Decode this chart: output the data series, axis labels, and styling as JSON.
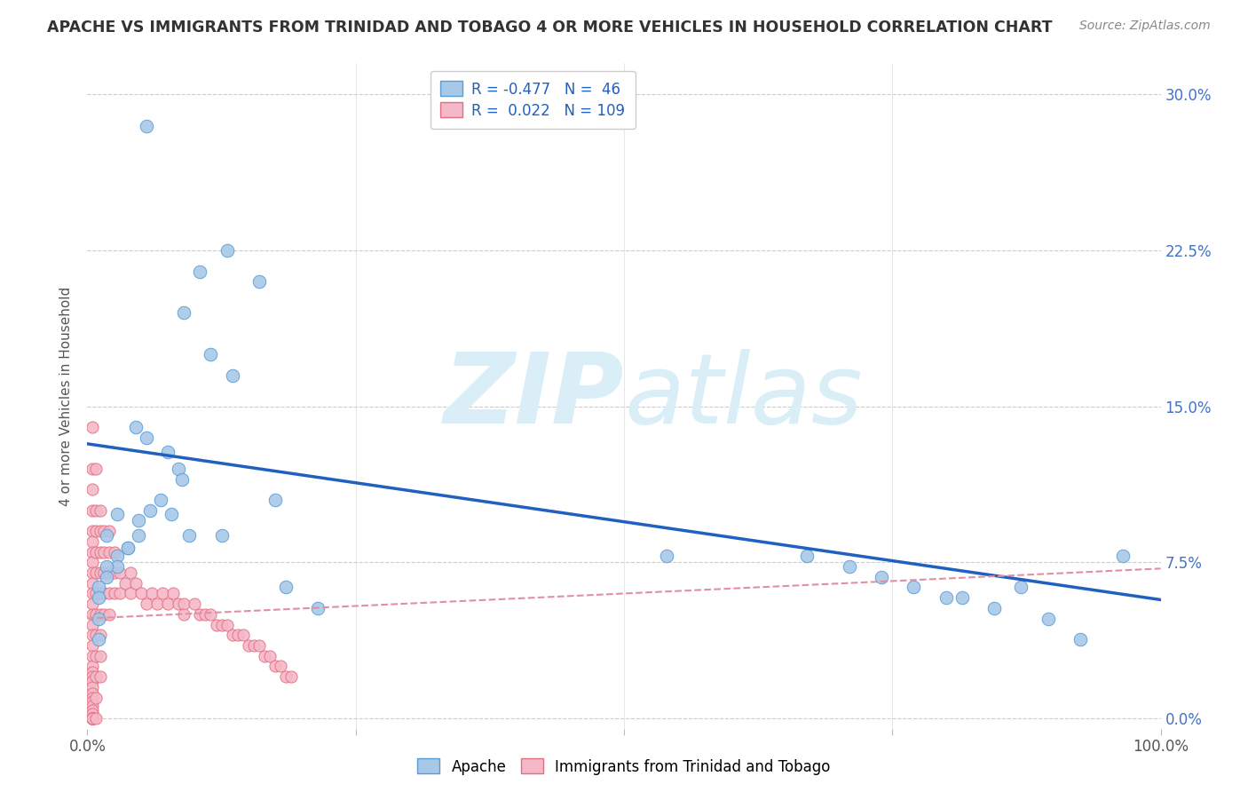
{
  "title": "APACHE VS IMMIGRANTS FROM TRINIDAD AND TOBAGO 4 OR MORE VEHICLES IN HOUSEHOLD CORRELATION CHART",
  "source": "Source: ZipAtlas.com",
  "ylabel": "4 or more Vehicles in Household",
  "xmin": 0.0,
  "xmax": 1.0,
  "ymin": -0.005,
  "ymax": 0.315,
  "ytick_vals": [
    0.0,
    0.075,
    0.15,
    0.225,
    0.3
  ],
  "ytick_labels": [
    "0.0%",
    "7.5%",
    "15.0%",
    "22.5%",
    "30.0%"
  ],
  "xtick_vals": [
    0.0,
    0.25,
    0.5,
    0.75,
    1.0
  ],
  "xtick_labels": [
    "0.0%",
    "",
    "",
    "",
    "100.0%"
  ],
  "legend_R_apache": "-0.477",
  "legend_N_apache": "46",
  "legend_R_tnt": "0.022",
  "legend_N_tnt": "109",
  "apache_color": "#a8c8e8",
  "apache_edge_color": "#5b9bd5",
  "tnt_color": "#f4b8c8",
  "tnt_edge_color": "#e07080",
  "trendline_apache_color": "#2060c0",
  "trendline_tnt_color": "#e090a0",
  "background_color": "#ffffff",
  "watermark_color": "#daeef8",
  "apache_trendline_x0": 0.0,
  "apache_trendline_y0": 0.132,
  "apache_trendline_x1": 1.0,
  "apache_trendline_y1": 0.057,
  "tnt_trendline_x0": 0.0,
  "tnt_trendline_y0": 0.048,
  "tnt_trendline_x1": 1.0,
  "tnt_trendline_y1": 0.072,
  "apache_x": [
    0.055,
    0.13,
    0.09,
    0.105,
    0.115,
    0.135,
    0.16,
    0.175,
    0.045,
    0.055,
    0.075,
    0.085,
    0.088,
    0.068,
    0.058,
    0.048,
    0.048,
    0.038,
    0.038,
    0.028,
    0.028,
    0.018,
    0.018,
    0.01,
    0.01,
    0.01,
    0.01,
    0.018,
    0.028,
    0.078,
    0.095,
    0.125,
    0.185,
    0.215,
    0.54,
    0.67,
    0.71,
    0.74,
    0.77,
    0.8,
    0.815,
    0.845,
    0.87,
    0.895,
    0.925,
    0.965
  ],
  "apache_y": [
    0.285,
    0.225,
    0.195,
    0.215,
    0.175,
    0.165,
    0.21,
    0.105,
    0.14,
    0.135,
    0.128,
    0.12,
    0.115,
    0.105,
    0.1,
    0.095,
    0.088,
    0.082,
    0.082,
    0.078,
    0.073,
    0.073,
    0.068,
    0.063,
    0.058,
    0.048,
    0.038,
    0.088,
    0.098,
    0.098,
    0.088,
    0.088,
    0.063,
    0.053,
    0.078,
    0.078,
    0.073,
    0.068,
    0.063,
    0.058,
    0.058,
    0.053,
    0.063,
    0.048,
    0.038,
    0.078
  ],
  "tnt_x": [
    0.005,
    0.005,
    0.005,
    0.005,
    0.005,
    0.005,
    0.005,
    0.005,
    0.005,
    0.005,
    0.005,
    0.005,
    0.005,
    0.005,
    0.005,
    0.005,
    0.005,
    0.005,
    0.005,
    0.005,
    0.005,
    0.005,
    0.005,
    0.005,
    0.005,
    0.005,
    0.005,
    0.005,
    0.005,
    0.005,
    0.005,
    0.005,
    0.005,
    0.005,
    0.005,
    0.005,
    0.005,
    0.005,
    0.005,
    0.005,
    0.008,
    0.008,
    0.008,
    0.008,
    0.008,
    0.008,
    0.008,
    0.008,
    0.008,
    0.008,
    0.008,
    0.008,
    0.012,
    0.012,
    0.012,
    0.012,
    0.012,
    0.012,
    0.012,
    0.012,
    0.012,
    0.015,
    0.015,
    0.015,
    0.015,
    0.015,
    0.02,
    0.02,
    0.02,
    0.02,
    0.02,
    0.025,
    0.025,
    0.025,
    0.03,
    0.03,
    0.035,
    0.04,
    0.04,
    0.045,
    0.05,
    0.055,
    0.06,
    0.065,
    0.07,
    0.075,
    0.08,
    0.085,
    0.09,
    0.09,
    0.1,
    0.105,
    0.11,
    0.115,
    0.12,
    0.125,
    0.13,
    0.135,
    0.14,
    0.145,
    0.15,
    0.155,
    0.16,
    0.165,
    0.17,
    0.175,
    0.18,
    0.185,
    0.19
  ],
  "tnt_y": [
    0.14,
    0.12,
    0.11,
    0.1,
    0.09,
    0.085,
    0.08,
    0.075,
    0.07,
    0.065,
    0.06,
    0.055,
    0.05,
    0.045,
    0.04,
    0.035,
    0.03,
    0.025,
    0.022,
    0.02,
    0.018,
    0.015,
    0.012,
    0.01,
    0.008,
    0.006,
    0.004,
    0.002,
    0.0,
    0.0,
    0.0,
    0.0,
    0.0,
    0.0,
    0.0,
    0.0,
    0.0,
    0.0,
    0.0,
    0.0,
    0.12,
    0.1,
    0.09,
    0.08,
    0.07,
    0.06,
    0.05,
    0.04,
    0.03,
    0.02,
    0.01,
    0.0,
    0.1,
    0.09,
    0.08,
    0.07,
    0.06,
    0.05,
    0.04,
    0.03,
    0.02,
    0.09,
    0.08,
    0.07,
    0.06,
    0.05,
    0.09,
    0.08,
    0.07,
    0.06,
    0.05,
    0.08,
    0.07,
    0.06,
    0.07,
    0.06,
    0.065,
    0.07,
    0.06,
    0.065,
    0.06,
    0.055,
    0.06,
    0.055,
    0.06,
    0.055,
    0.06,
    0.055,
    0.055,
    0.05,
    0.055,
    0.05,
    0.05,
    0.05,
    0.045,
    0.045,
    0.045,
    0.04,
    0.04,
    0.04,
    0.035,
    0.035,
    0.035,
    0.03,
    0.03,
    0.025,
    0.025,
    0.02,
    0.02
  ]
}
